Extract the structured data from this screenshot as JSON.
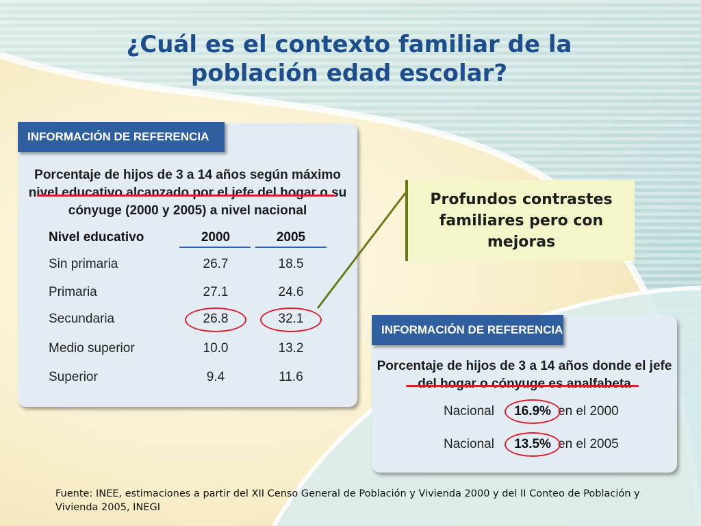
{
  "title": "¿Cuál es el contexto familiar de la población edad escolar?",
  "left_panel": {
    "header": "INFORMACIÓN DE REFERENCIA",
    "subtitle": "Porcentaje de hijos de 3 a 14 años según máximo nivel educativo alcanzado por el jefe del hogar o su cónyuge (2000 y 2005) a nivel nacional",
    "columns": [
      "Nivel educativo",
      "2000",
      "2005"
    ],
    "rows": [
      {
        "label": "Sin primaria",
        "y2000": "26.7",
        "y2005": "18.5"
      },
      {
        "label": "Primaria",
        "y2000": "27.1",
        "y2005": "24.6"
      },
      {
        "label": "Secundaria",
        "y2000": "26.8",
        "y2005": "32.1"
      },
      {
        "label": "Medio superior",
        "y2000": "10.0",
        "y2005": "13.2"
      },
      {
        "label": "Superior",
        "y2000": "9.4",
        "y2005": "11.6"
      }
    ]
  },
  "callout": "Profundos contrastes familiares pero con mejoras",
  "right_panel": {
    "header": "INFORMACIÓN DE REFERENCIA",
    "subtitle": "Porcentaje de hijos de 3 a 14 años donde el jefe del hogar o cónyuge es analfabeta",
    "rows": [
      {
        "label": "Nacional",
        "value": "16.9%",
        "suffix": "en el 2000"
      },
      {
        "label": "Nacional",
        "value": "13.5%",
        "suffix": "en el 2005"
      }
    ]
  },
  "source": "Fuente: INEE, estimaciones a partir del XII Censo General de Población y Vivienda 2000 y del II Conteo de Población y Vivienda 2005, INEGI",
  "colors": {
    "title": "#1d4e8c",
    "header_bg": "#2f5f9e",
    "highlight": "#d61e2e",
    "callout_bg": "#f4f5c8",
    "connector": "#6b7818"
  }
}
